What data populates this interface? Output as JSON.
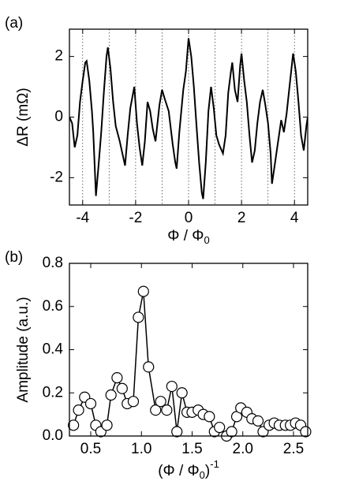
{
  "chart_data": [
    {
      "type": "line",
      "panel_label": "(a)",
      "ylabel": [
        {
          "text": "ΔR (mΩ)",
          "shift": "none"
        }
      ],
      "xlabel": [
        {
          "text": "Φ / Φ",
          "shift": "none"
        },
        {
          "text": "0",
          "shift": "sub"
        }
      ],
      "xlim": [
        -4.5,
        4.5
      ],
      "ylim": [
        -2.9,
        2.9
      ],
      "xticks": [
        -4,
        -2,
        0,
        2,
        4
      ],
      "yticks": [
        -2,
        0,
        2
      ],
      "reference_lines": [
        -4,
        -3,
        -2,
        -1,
        0,
        1,
        2,
        3,
        4
      ],
      "color": "#000000",
      "x": [
        -4.5,
        -4.4,
        -4.3,
        -4.2,
        -4.1,
        -4.0,
        -3.9,
        -3.85,
        -3.75,
        -3.65,
        -3.6,
        -3.5,
        -3.4,
        -3.3,
        -3.2,
        -3.1,
        -3.05,
        -2.95,
        -2.85,
        -2.75,
        -2.6,
        -2.5,
        -2.4,
        -2.3,
        -2.2,
        -2.05,
        -1.95,
        -1.85,
        -1.75,
        -1.65,
        -1.55,
        -1.45,
        -1.35,
        -1.25,
        -1.1,
        -1.0,
        -0.9,
        -0.75,
        -0.6,
        -0.5,
        -0.45,
        -0.35,
        -0.2,
        -0.1,
        0.0,
        0.1,
        0.2,
        0.3,
        0.4,
        0.5,
        0.55,
        0.65,
        0.75,
        0.85,
        0.95,
        1.05,
        1.15,
        1.3,
        1.4,
        1.5,
        1.6,
        1.65,
        1.75,
        1.85,
        1.95,
        2.0,
        2.1,
        2.2,
        2.3,
        2.4,
        2.5,
        2.6,
        2.7,
        2.8,
        2.9,
        3.0,
        3.1,
        3.15,
        3.25,
        3.35,
        3.5,
        3.6,
        3.7,
        3.8,
        3.95,
        4.05,
        4.15,
        4.25,
        4.35,
        4.45,
        4.5
      ],
      "values": [
        0.0,
        -0.2,
        -1.0,
        -0.6,
        0.5,
        1.2,
        1.8,
        1.85,
        1.2,
        0.2,
        -0.5,
        -2.6,
        -1.6,
        -0.5,
        0.8,
        2.0,
        2.3,
        1.6,
        0.5,
        -0.3,
        -0.8,
        -1.2,
        -1.6,
        -0.6,
        0.3,
        1.0,
        -0.2,
        -1.0,
        -1.6,
        -0.8,
        0.5,
        0.2,
        -0.4,
        -0.8,
        0.4,
        0.9,
        0.6,
        0.2,
        -0.9,
        -1.5,
        -1.7,
        -0.5,
        0.9,
        1.5,
        2.6,
        2.0,
        1.0,
        -0.3,
        -1.5,
        -2.5,
        -2.7,
        -1.5,
        0.2,
        1.0,
        0.3,
        -0.6,
        -0.9,
        -1.2,
        -0.6,
        0.8,
        1.5,
        1.8,
        0.9,
        0.5,
        1.7,
        2.1,
        1.2,
        0.5,
        -0.6,
        -1.5,
        -1.1,
        -0.2,
        0.5,
        0.9,
        0.4,
        -0.2,
        -1.2,
        -2.2,
        -1.6,
        -1.0,
        -0.1,
        -0.5,
        0.1,
        0.9,
        2.1,
        1.5,
        0.5,
        -0.6,
        -1.1,
        -0.3,
        0.0
      ]
    },
    {
      "type": "scatter",
      "panel_label": "(b)",
      "connect": true,
      "ylabel": [
        {
          "text": "Amplitude (a.u.)",
          "shift": "none"
        }
      ],
      "xlabel": [
        {
          "text": "(Φ / Φ",
          "shift": "none"
        },
        {
          "text": "0",
          "shift": "sub"
        },
        {
          "text": ")",
          "shift": "none"
        },
        {
          "text": "-1",
          "shift": "sup"
        }
      ],
      "xlim": [
        0.29,
        2.64
      ],
      "ylim": [
        0,
        0.8
      ],
      "xticks": [
        0.5,
        {
          "value": 1,
          "label": "1.0"
        },
        1.5,
        {
          "value": 2,
          "label": "2.0"
        },
        2.5
      ],
      "yticks": [
        {
          "value": 0,
          "label": "0.0"
        },
        0.2,
        0.4,
        0.6,
        0.8
      ],
      "color": "#000000",
      "x": [
        0.33,
        0.38,
        0.44,
        0.5,
        0.55,
        0.6,
        0.66,
        0.7,
        0.76,
        0.81,
        0.86,
        0.92,
        0.97,
        1.02,
        1.07,
        1.14,
        1.19,
        1.25,
        1.3,
        1.35,
        1.4,
        1.45,
        1.5,
        1.56,
        1.61,
        1.67,
        1.72,
        1.77,
        1.84,
        1.89,
        1.94,
        1.98,
        2.04,
        2.09,
        2.15,
        2.2,
        2.26,
        2.31,
        2.36,
        2.42,
        2.47,
        2.52,
        2.57,
        2.62
      ],
      "values": [
        0.05,
        0.12,
        0.18,
        0.15,
        0.05,
        0.02,
        0.05,
        0.19,
        0.27,
        0.22,
        0.15,
        0.16,
        0.55,
        0.67,
        0.32,
        0.12,
        0.16,
        0.12,
        0.23,
        0.02,
        0.2,
        0.11,
        0.11,
        0.12,
        0.1,
        0.09,
        0.02,
        0.04,
        0.0,
        0.02,
        0.09,
        0.13,
        0.11,
        0.08,
        0.07,
        0.02,
        0.05,
        0.06,
        0.05,
        0.05,
        0.05,
        0.06,
        0.05,
        0.02
      ]
    }
  ]
}
